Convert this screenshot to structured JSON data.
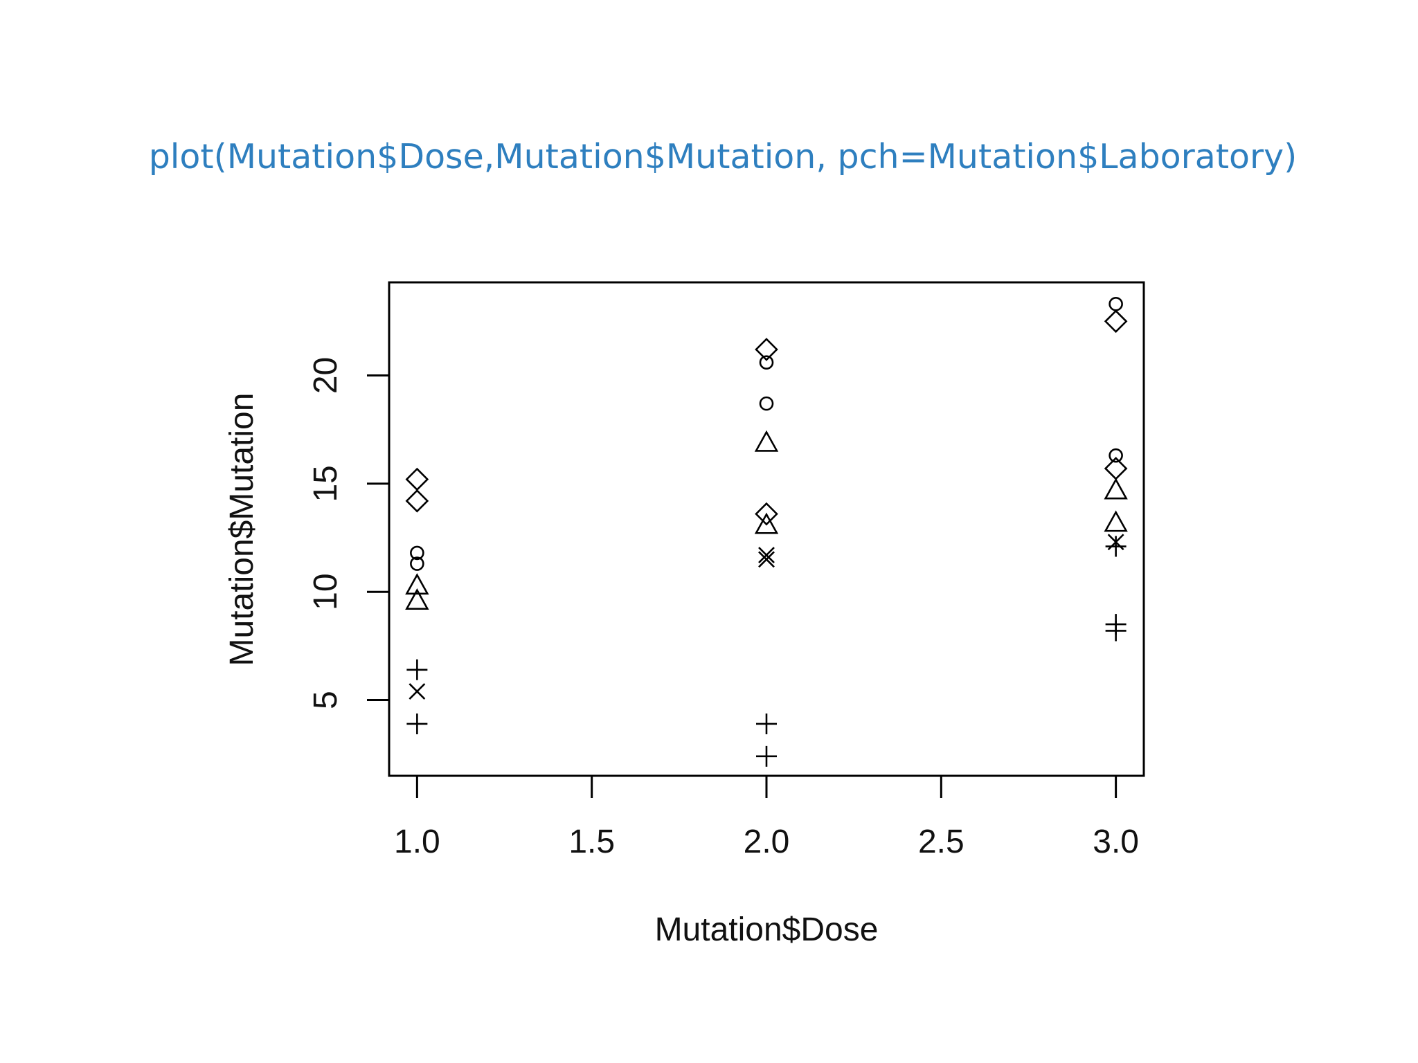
{
  "slide": {
    "code_line": "plot(Mutation$Dose,Mutation$Mutation, pch=Mutation$Laboratory)"
  },
  "chart_data": {
    "type": "scatter",
    "xlabel": "Mutation$Dose",
    "ylabel": "Mutation$Mutation",
    "xlim": [
      0.92,
      3.08
    ],
    "ylim": [
      1.5,
      24.3
    ],
    "x_ticks": [
      1.0,
      1.5,
      2.0,
      2.5,
      3.0
    ],
    "x_tick_labels": [
      "1.0",
      "1.5",
      "2.0",
      "2.5",
      "3.0"
    ],
    "y_ticks": [
      5,
      10,
      15,
      20
    ],
    "y_tick_labels": [
      "5",
      "10",
      "15",
      "20"
    ],
    "grid": false,
    "points": [
      {
        "x": 1,
        "y": 15.2,
        "pch": "diamond"
      },
      {
        "x": 1,
        "y": 14.2,
        "pch": "diamond"
      },
      {
        "x": 1,
        "y": 11.8,
        "pch": "circle"
      },
      {
        "x": 1,
        "y": 11.3,
        "pch": "circle"
      },
      {
        "x": 1,
        "y": 10.3,
        "pch": "triangle"
      },
      {
        "x": 1,
        "y": 9.6,
        "pch": "triangle"
      },
      {
        "x": 1,
        "y": 6.4,
        "pch": "plus"
      },
      {
        "x": 1,
        "y": 5.4,
        "pch": "cross"
      },
      {
        "x": 1,
        "y": 3.9,
        "pch": "plus"
      },
      {
        "x": 2,
        "y": 21.2,
        "pch": "diamond"
      },
      {
        "x": 2,
        "y": 20.6,
        "pch": "circle"
      },
      {
        "x": 2,
        "y": 18.7,
        "pch": "circle"
      },
      {
        "x": 2,
        "y": 16.9,
        "pch": "triangle"
      },
      {
        "x": 2,
        "y": 13.6,
        "pch": "diamond"
      },
      {
        "x": 2,
        "y": 13.1,
        "pch": "triangle"
      },
      {
        "x": 2,
        "y": 11.7,
        "pch": "cross"
      },
      {
        "x": 2,
        "y": 11.5,
        "pch": "cross"
      },
      {
        "x": 2,
        "y": 3.9,
        "pch": "plus"
      },
      {
        "x": 2,
        "y": 2.4,
        "pch": "plus"
      },
      {
        "x": 3,
        "y": 23.3,
        "pch": "circle"
      },
      {
        "x": 3,
        "y": 22.5,
        "pch": "diamond"
      },
      {
        "x": 3,
        "y": 16.3,
        "pch": "circle"
      },
      {
        "x": 3,
        "y": 15.7,
        "pch": "diamond"
      },
      {
        "x": 3,
        "y": 14.7,
        "pch": "triangle"
      },
      {
        "x": 3,
        "y": 13.2,
        "pch": "triangle"
      },
      {
        "x": 3,
        "y": 12.3,
        "pch": "cross"
      },
      {
        "x": 3,
        "y": 12.1,
        "pch": "plus"
      },
      {
        "x": 3,
        "y": 8.5,
        "pch": "plus"
      },
      {
        "x": 3,
        "y": 8.2,
        "pch": "plus"
      }
    ]
  }
}
